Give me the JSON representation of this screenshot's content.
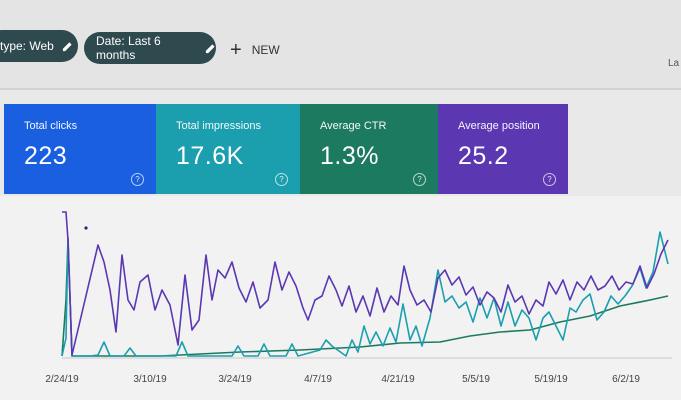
{
  "filters": {
    "type_chip": "type: Web",
    "date_chip": "Date: Last 6 months",
    "new_button": "NEW",
    "corner_text": "La"
  },
  "metrics": [
    {
      "label": "Total clicks",
      "value": "223",
      "color": "#1a5fe0"
    },
    {
      "label": "Total impressions",
      "value": "17.6K",
      "color": "#1b9fae"
    },
    {
      "label": "Average CTR",
      "value": "1.3%",
      "color": "#1b7a5f"
    },
    {
      "label": "Average position",
      "value": "25.2",
      "color": "#5b37b2"
    }
  ],
  "chart_data": {
    "type": "line",
    "x_tick_labels": [
      "2/24/19",
      "3/10/19",
      "3/24/19",
      "4/7/19",
      "4/21/19",
      "5/5/19",
      "5/19/19",
      "6/2/19"
    ],
    "series": [
      {
        "color": "#5b37b2",
        "points": [
          [
            62,
            212
          ],
          [
            66,
            212
          ],
          [
            68,
            240
          ],
          [
            72,
            355
          ],
          [
            98,
            245
          ],
          [
            104,
            262
          ],
          [
            110,
            290
          ],
          [
            116,
            332
          ],
          [
            122,
            255
          ],
          [
            128,
            300
          ],
          [
            134,
            310
          ],
          [
            140,
            282
          ],
          [
            148,
            275
          ],
          [
            155,
            310
          ],
          [
            162,
            290
          ],
          [
            170,
            305
          ],
          [
            178,
            345
          ],
          [
            185,
            275
          ],
          [
            192,
            330
          ],
          [
            199,
            320
          ],
          [
            206,
            255
          ],
          [
            212,
            300
          ],
          [
            218,
            270
          ],
          [
            225,
            278
          ],
          [
            232,
            262
          ],
          [
            239,
            288
          ],
          [
            246,
            302
          ],
          [
            253,
            282
          ],
          [
            260,
            308
          ],
          [
            268,
            300
          ],
          [
            275,
            262
          ],
          [
            282,
            290
          ],
          [
            289,
            272
          ],
          [
            296,
            286
          ],
          [
            303,
            308
          ],
          [
            308,
            320
          ],
          [
            315,
            300
          ],
          [
            322,
            296
          ],
          [
            329,
            276
          ],
          [
            336,
            290
          ],
          [
            342,
            306
          ],
          [
            349,
            286
          ],
          [
            356,
            312
          ],
          [
            363,
            296
          ],
          [
            370,
            316
          ],
          [
            377,
            288
          ],
          [
            384,
            312
          ],
          [
            391,
            296
          ],
          [
            398,
            305
          ],
          [
            404,
            266
          ],
          [
            410,
            290
          ],
          [
            417,
            305
          ],
          [
            424,
            300
          ],
          [
            431,
            312
          ],
          [
            438,
            278
          ],
          [
            445,
            270
          ],
          [
            452,
            285
          ],
          [
            459,
            277
          ],
          [
            466,
            295
          ],
          [
            473,
            287
          ],
          [
            480,
            305
          ],
          [
            487,
            292
          ],
          [
            494,
            298
          ],
          [
            501,
            312
          ],
          [
            508,
            285
          ],
          [
            515,
            302
          ],
          [
            522,
            296
          ],
          [
            529,
            314
          ],
          [
            536,
            300
          ],
          [
            543,
            306
          ],
          [
            549,
            282
          ],
          [
            556,
            294
          ],
          [
            563,
            280
          ],
          [
            570,
            300
          ],
          [
            577,
            282
          ],
          [
            584,
            290
          ],
          [
            591,
            276
          ],
          [
            598,
            290
          ],
          [
            605,
            286
          ],
          [
            612,
            276
          ],
          [
            619,
            290
          ],
          [
            626,
            282
          ],
          [
            633,
            284
          ],
          [
            640,
            266
          ],
          [
            647,
            288
          ],
          [
            654,
            274
          ],
          [
            661,
            254
          ],
          [
            668,
            240
          ]
        ]
      },
      {
        "color": "#1b9fae",
        "points": [
          [
            62,
            356
          ],
          [
            66,
            338
          ],
          [
            68,
            238
          ],
          [
            72,
            356
          ],
          [
            90,
            356
          ],
          [
            98,
            355
          ],
          [
            104,
            342
          ],
          [
            110,
            356
          ],
          [
            124,
            356
          ],
          [
            130,
            348
          ],
          [
            136,
            356
          ],
          [
            176,
            356
          ],
          [
            182,
            342
          ],
          [
            188,
            356
          ],
          [
            232,
            356
          ],
          [
            238,
            346
          ],
          [
            244,
            356
          ],
          [
            258,
            356
          ],
          [
            264,
            344
          ],
          [
            270,
            356
          ],
          [
            286,
            356
          ],
          [
            292,
            344
          ],
          [
            298,
            356
          ],
          [
            320,
            350
          ],
          [
            326,
            340
          ],
          [
            332,
            346
          ],
          [
            346,
            356
          ],
          [
            352,
            340
          ],
          [
            358,
            352
          ],
          [
            364,
            326
          ],
          [
            370,
            344
          ],
          [
            376,
            332
          ],
          [
            383,
            346
          ],
          [
            390,
            328
          ],
          [
            396,
            342
          ],
          [
            403,
            304
          ],
          [
            410,
            340
          ],
          [
            416,
            326
          ],
          [
            422,
            346
          ],
          [
            430,
            318
          ],
          [
            438,
            270
          ],
          [
            445,
            302
          ],
          [
            452,
            296
          ],
          [
            459,
            308
          ],
          [
            466,
            302
          ],
          [
            473,
            322
          ],
          [
            480,
            298
          ],
          [
            487,
            318
          ],
          [
            494,
            298
          ],
          [
            501,
            326
          ],
          [
            508,
            302
          ],
          [
            515,
            326
          ],
          [
            522,
            310
          ],
          [
            529,
            318
          ],
          [
            536,
            340
          ],
          [
            543,
            318
          ],
          [
            549,
            312
          ],
          [
            556,
            326
          ],
          [
            563,
            340
          ],
          [
            570,
            308
          ],
          [
            576,
            312
          ],
          [
            583,
            300
          ],
          [
            590,
            294
          ],
          [
            597,
            320
          ],
          [
            604,
            312
          ],
          [
            611,
            296
          ],
          [
            618,
            304
          ],
          [
            625,
            296
          ],
          [
            632,
            286
          ],
          [
            640,
            268
          ],
          [
            646,
            288
          ],
          [
            653,
            272
          ],
          [
            660,
            232
          ],
          [
            668,
            264
          ]
        ]
      },
      {
        "color": "#1b7a5f",
        "points": [
          [
            62,
            356
          ],
          [
            66,
            300
          ],
          [
            68,
            240
          ],
          [
            72,
            356
          ],
          [
            100,
            356
          ],
          [
            160,
            356
          ],
          [
            240,
            352
          ],
          [
            300,
            350
          ],
          [
            360,
            347
          ],
          [
            400,
            343
          ],
          [
            440,
            342
          ],
          [
            470,
            336
          ],
          [
            500,
            332
          ],
          [
            530,
            330
          ],
          [
            560,
            322
          ],
          [
            590,
            316
          ],
          [
            620,
            306
          ],
          [
            650,
            300
          ],
          [
            668,
            296
          ]
        ]
      }
    ]
  }
}
